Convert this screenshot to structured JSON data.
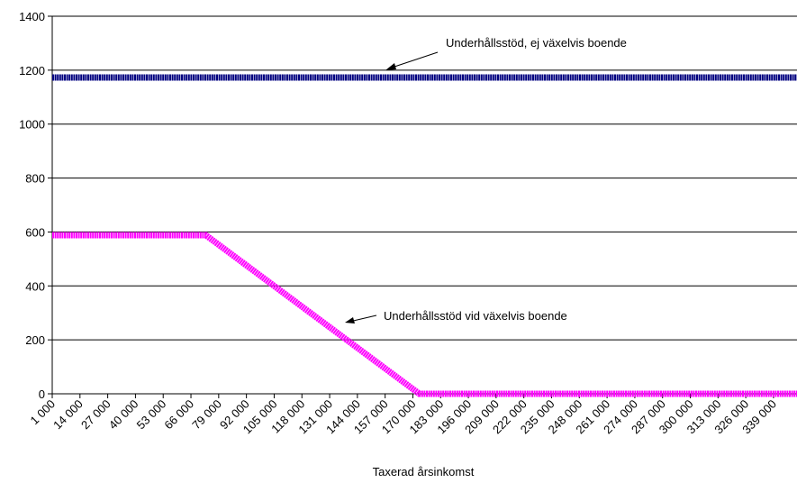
{
  "chart_data": {
    "type": "line",
    "x": [
      1000,
      73000,
      173000,
      350000
    ],
    "xlim": [
      1000,
      350000
    ],
    "xticks": [
      {
        "value": 1000,
        "label": "1 000"
      },
      {
        "value": 14000,
        "label": "14 000"
      },
      {
        "value": 27000,
        "label": "27 000"
      },
      {
        "value": 40000,
        "label": "40 000"
      },
      {
        "value": 53000,
        "label": "53 000"
      },
      {
        "value": 66000,
        "label": "66 000"
      },
      {
        "value": 79000,
        "label": "79 000"
      },
      {
        "value": 92000,
        "label": "92 000"
      },
      {
        "value": 105000,
        "label": "105 000"
      },
      {
        "value": 118000,
        "label": "118 000"
      },
      {
        "value": 131000,
        "label": "131 000"
      },
      {
        "value": 144000,
        "label": "144 000"
      },
      {
        "value": 157000,
        "label": "157 000"
      },
      {
        "value": 170000,
        "label": "170 000"
      },
      {
        "value": 183000,
        "label": "183 000"
      },
      {
        "value": 196000,
        "label": "196 000"
      },
      {
        "value": 209000,
        "label": "209 000"
      },
      {
        "value": 222000,
        "label": "222 000"
      },
      {
        "value": 235000,
        "label": "235 000"
      },
      {
        "value": 248000,
        "label": "248 000"
      },
      {
        "value": 261000,
        "label": "261 000"
      },
      {
        "value": 274000,
        "label": "274 000"
      },
      {
        "value": 287000,
        "label": "287 000"
      },
      {
        "value": 300000,
        "label": "300 000"
      },
      {
        "value": 313000,
        "label": "313 000"
      },
      {
        "value": 326000,
        "label": "326 000"
      },
      {
        "value": 339000,
        "label": "339 000"
      }
    ],
    "ylim": [
      0,
      1400
    ],
    "yticks": [
      0,
      200,
      400,
      600,
      800,
      1000,
      1200,
      1400
    ],
    "grid": true,
    "xlabel": "Taxerad årsinkomst",
    "series": [
      {
        "color": "#000080",
        "values": [
          1173,
          1173,
          1173,
          1173
        ]
      },
      {
        "color": "#ff00ff",
        "values": [
          588,
          588,
          0,
          0
        ]
      }
    ],
    "annotations": [
      "Underhållsstöd, ej växelvis boende",
      "Underhållsstöd vid växelvis boende"
    ]
  }
}
